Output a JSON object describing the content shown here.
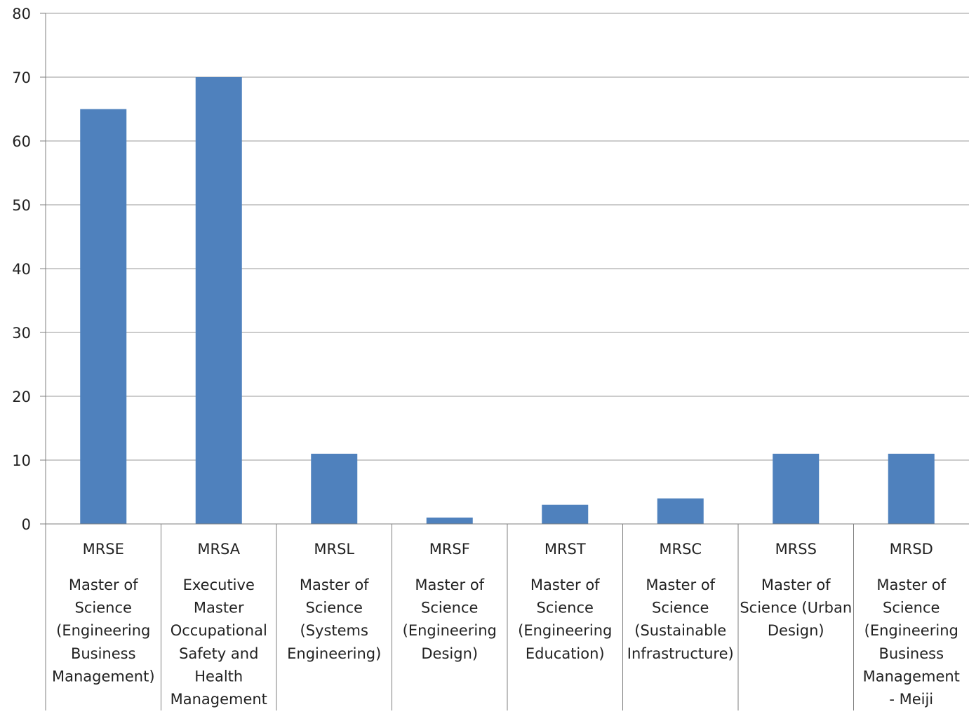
{
  "chart_data": {
    "type": "bar",
    "title": "",
    "xlabel": "",
    "ylabel": "",
    "ylim": [
      0,
      80
    ],
    "y_ticks": [
      0,
      10,
      20,
      30,
      40,
      50,
      60,
      70,
      80
    ],
    "grid": true,
    "legend": "none",
    "categories": [
      {
        "code": "MRSE",
        "name": "Master of Science (Engineering Business Management)",
        "lines": [
          "Master of",
          "Science",
          "(Engineering",
          "Business",
          "Management)"
        ]
      },
      {
        "code": "MRSA",
        "name": "Executive Master Occupational Safety and Health Management",
        "lines": [
          "Executive",
          "Master",
          "Occupational",
          "Safety and",
          "Health",
          "Management"
        ]
      },
      {
        "code": "MRSL",
        "name": "Master of Science (Systems Engineering)",
        "lines": [
          "Master of",
          "Science",
          "(Systems",
          "Engineering)"
        ]
      },
      {
        "code": "MRSF",
        "name": "Master of Science (Engineering Design)",
        "lines": [
          "Master of",
          "Science",
          "(Engineering",
          "Design)"
        ]
      },
      {
        "code": "MRST",
        "name": "Master of Science (Engineering Education)",
        "lines": [
          "Master of",
          "Science",
          "(Engineering",
          "Education)"
        ]
      },
      {
        "code": "MRSC",
        "name": "Master of Science (Sustainable Infrastructure)",
        "lines": [
          "Master of",
          "Science",
          "(Sustainable",
          "Infrastructure)"
        ]
      },
      {
        "code": "MRSS",
        "name": "Master of Science (Urban Design)",
        "lines": [
          "Master of",
          "Science (Urban",
          "Design)"
        ]
      },
      {
        "code": "MRSD",
        "name": "Master of Science (Engineering Business Management - Meiji",
        "lines": [
          "Master of",
          "Science",
          "(Engineering",
          "Business",
          "Management",
          "- Meiji"
        ]
      }
    ],
    "series": [
      {
        "values": [
          65,
          70,
          11,
          1,
          3,
          4,
          11,
          11
        ],
        "color": "#4f81bd"
      }
    ],
    "colors": {
      "bar": "#4f81bd",
      "grid": "#9a9a9a",
      "axis": "#7f7f7f",
      "text": "#222222"
    }
  }
}
